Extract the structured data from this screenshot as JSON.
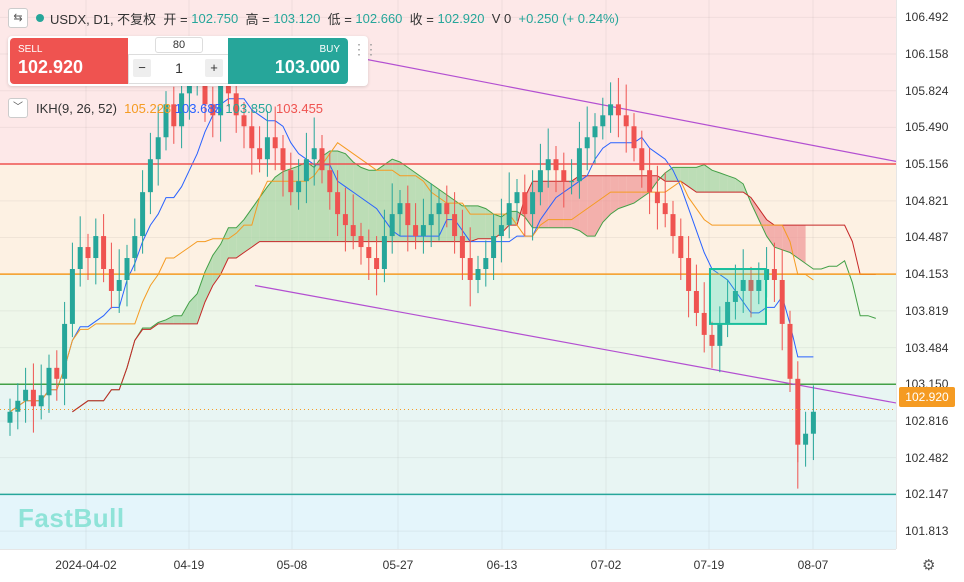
{
  "legend": {
    "switch_icon": "swap-icon",
    "symbol": "USDX, D1, 不复权",
    "open_label": "开 =",
    "open": "102.750",
    "high_label": "高 =",
    "high": "103.120",
    "low_label": "低 =",
    "low": "102.660",
    "close_label": "收 =",
    "close": "102.920",
    "volume": "V 0",
    "change": "+0.250 (+ 0.24%)"
  },
  "trade": {
    "sell_label": "SELL",
    "sell_price": "102.920",
    "buy_label": "BUY",
    "buy_price": "103.000",
    "spread": "80",
    "quantity": "1",
    "minus": "−",
    "plus": "+"
  },
  "indicator": {
    "name": "IKH(9, 26, 52)",
    "v1": "105.228",
    "v2": "103.685",
    "v3": "103.850",
    "v4": "103.455"
  },
  "logo": "FastBull",
  "current_price": "102.920",
  "colors": {
    "up": "#26a69a",
    "down": "#ef5350",
    "tenkan": "#2962ff",
    "kijun": "#f59b22",
    "trendline": "#b34fd1",
    "bull_cloud": "#a5d6a7",
    "bear_cloud": "#ef9a9a"
  },
  "chart_data": {
    "type": "candlestick",
    "yticks": [
      "106.492",
      "106.158",
      "105.824",
      "105.490",
      "105.156",
      "104.821",
      "104.487",
      "104.153",
      "103.819",
      "103.484",
      "103.150",
      "102.816",
      "102.482",
      "102.147",
      "101.813"
    ],
    "ylim": [
      101.65,
      106.65
    ],
    "xticks": [
      "2024-04-02",
      "04-19",
      "05-08",
      "05-27",
      "06-13",
      "07-02",
      "07-19",
      "08-07"
    ],
    "horizontal_levels": [
      {
        "price": 105.156,
        "color": "#ef5350"
      },
      {
        "price": 104.153,
        "color": "#f59b22"
      },
      {
        "price": 103.15,
        "color": "#43a047"
      },
      {
        "price": 102.147,
        "color": "#26a69a"
      }
    ],
    "zones": [
      {
        "from": 105.156,
        "to": 106.65,
        "color": "#fde8e8"
      },
      {
        "from": 104.153,
        "to": 105.156,
        "color": "#fdf1e3"
      },
      {
        "from": 103.15,
        "to": 104.153,
        "color": "#eef7ea"
      },
      {
        "from": 102.147,
        "to": 103.15,
        "color": "#e8f5f3"
      },
      {
        "from": 101.65,
        "to": 102.147,
        "color": "#e4f5fb"
      }
    ],
    "trendlines": [
      {
        "from": [
          "04-30",
          106.3
        ],
        "to": [
          "08-14",
          105.18
        ]
      },
      {
        "from": [
          "04-30",
          104.05
        ],
        "to": [
          "08-14",
          103.0
        ]
      }
    ],
    "box": {
      "from": [
        "07-19",
        104.2
      ],
      "to": [
        "07-29",
        103.7
      ]
    },
    "closes": [
      102.9,
      103.0,
      103.1,
      102.95,
      103.05,
      103.3,
      103.2,
      103.7,
      104.2,
      104.4,
      104.3,
      104.5,
      104.2,
      104.0,
      104.1,
      104.3,
      104.5,
      104.9,
      105.2,
      105.4,
      105.7,
      105.5,
      105.8,
      105.9,
      106.0,
      105.7,
      105.6,
      105.9,
      105.8,
      105.6,
      105.5,
      105.3,
      105.2,
      105.4,
      105.3,
      105.1,
      104.9,
      105.0,
      105.2,
      105.3,
      105.1,
      104.9,
      104.7,
      104.6,
      104.5,
      104.4,
      104.3,
      104.2,
      104.5,
      104.7,
      104.8,
      104.6,
      104.5,
      104.6,
      104.7,
      104.8,
      104.7,
      104.5,
      104.3,
      104.1,
      104.2,
      104.3,
      104.5,
      104.6,
      104.8,
      104.9,
      104.7,
      104.9,
      105.1,
      105.2,
      105.1,
      105.0,
      105.0,
      105.3,
      105.4,
      105.5,
      105.6,
      105.7,
      105.6,
      105.5,
      105.3,
      105.1,
      104.9,
      104.8,
      104.7,
      104.5,
      104.3,
      104.0,
      103.8,
      103.6,
      103.5,
      103.7,
      103.9,
      104.0,
      104.1,
      104.0,
      104.1,
      104.2,
      104.1,
      103.7,
      103.2,
      102.6,
      102.7,
      102.9
    ],
    "bull_extreme_low": 102.2
  }
}
